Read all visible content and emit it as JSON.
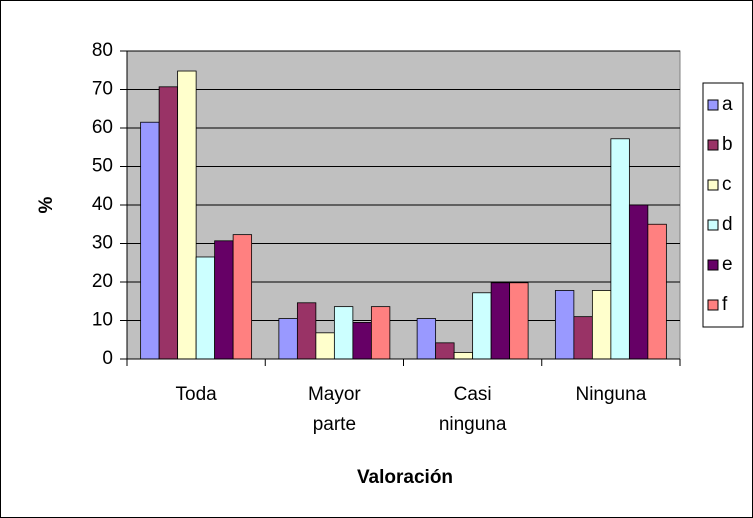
{
  "chart_data": {
    "type": "bar",
    "x_label": "Valoración",
    "y_label": "%",
    "categories": [
      "Toda",
      "Mayor\nparte",
      "Casi\nninguna",
      "Ninguna"
    ],
    "series": [
      {
        "name": "a",
        "color": "#9999ff",
        "values": [
          61.5,
          10.5,
          10.5,
          17.8
        ]
      },
      {
        "name": "b",
        "color": "#993366",
        "values": [
          70.7,
          14.6,
          4.2,
          11.0
        ]
      },
      {
        "name": "c",
        "color": "#ffffcc",
        "values": [
          74.8,
          6.8,
          1.7,
          17.8
        ]
      },
      {
        "name": "d",
        "color": "#ccffff",
        "values": [
          26.5,
          13.6,
          17.2,
          57.2
        ]
      },
      {
        "name": "e",
        "color": "#660066",
        "values": [
          30.7,
          9.5,
          19.8,
          40.0
        ]
      },
      {
        "name": "f",
        "color": "#ff8080",
        "values": [
          32.3,
          13.6,
          19.8,
          35.0
        ]
      }
    ],
    "ylim": [
      0,
      80
    ],
    "yticks": [
      0,
      10,
      20,
      30,
      40,
      50,
      60,
      70,
      80
    ],
    "grid": true,
    "legend": "right"
  }
}
